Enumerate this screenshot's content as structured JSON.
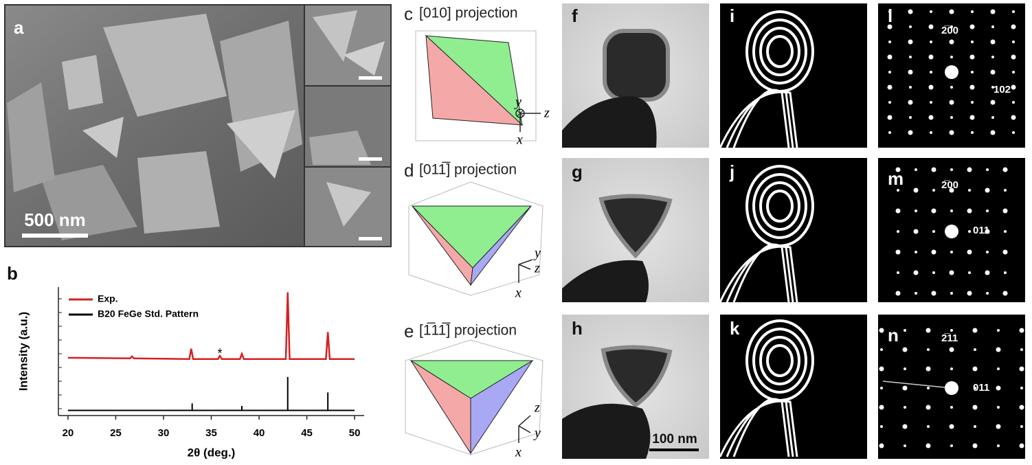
{
  "panel_labels": [
    "a",
    "b",
    "c",
    "d",
    "e",
    "f",
    "g",
    "h",
    "i",
    "j",
    "k",
    "l",
    "m",
    "n"
  ],
  "scale_bars": [
    "500 nm",
    "100 nm"
  ],
  "projections": [
    "[010] projection",
    "[011̅] projection",
    "[1̅11̅] projection"
  ],
  "diagram_axes": [
    [
      "y",
      "z",
      "x"
    ],
    [
      "y",
      "z",
      "x"
    ],
    [
      "z",
      "y",
      "x"
    ]
  ],
  "diffraction_labels": [
    [
      "2̅00",
      "102"
    ],
    [
      "2̅00",
      "011"
    ],
    [
      "2̅11",
      "011"
    ]
  ],
  "chart_data": {
    "type": "line",
    "xlabel": "2θ (deg.)",
    "ylabel": "Intensity (a.u.)",
    "xlim": [
      19,
      51
    ],
    "xticks": [
      20,
      25,
      30,
      35,
      40,
      45,
      50
    ],
    "ylim": [
      0,
      10
    ],
    "series": [
      {
        "name": "Exp.",
        "color": "#d62020",
        "x": [
          20,
          26.5,
          26.7,
          26.9,
          32.7,
          32.9,
          33.1,
          35.7,
          35.9,
          36.1,
          38.0,
          38.2,
          38.4,
          42.8,
          43.0,
          43.2,
          47.0,
          47.2,
          47.4,
          50
        ],
        "values": [
          4.5,
          4.45,
          4.6,
          4.45,
          4.4,
          5.2,
          4.4,
          4.4,
          4.65,
          4.4,
          4.4,
          4.8,
          4.4,
          4.4,
          9.6,
          4.4,
          4.4,
          6.5,
          4.4,
          4.4
        ]
      },
      {
        "name": "B20 FeGe Std. Pattern",
        "color": "#000000",
        "x": [
          20,
          33.0,
          33.0,
          33.0,
          38.2,
          38.2,
          38.2,
          43.0,
          43.0,
          43.0,
          47.2,
          47.2,
          47.2,
          50
        ],
        "values": [
          0.4,
          0.4,
          0.95,
          0.4,
          0.4,
          0.75,
          0.4,
          0.4,
          3.0,
          0.4,
          0.4,
          1.8,
          0.4,
          0.4
        ]
      }
    ],
    "annotations": [
      {
        "text": "*",
        "x": 35.9,
        "y": 5.0
      }
    ]
  }
}
